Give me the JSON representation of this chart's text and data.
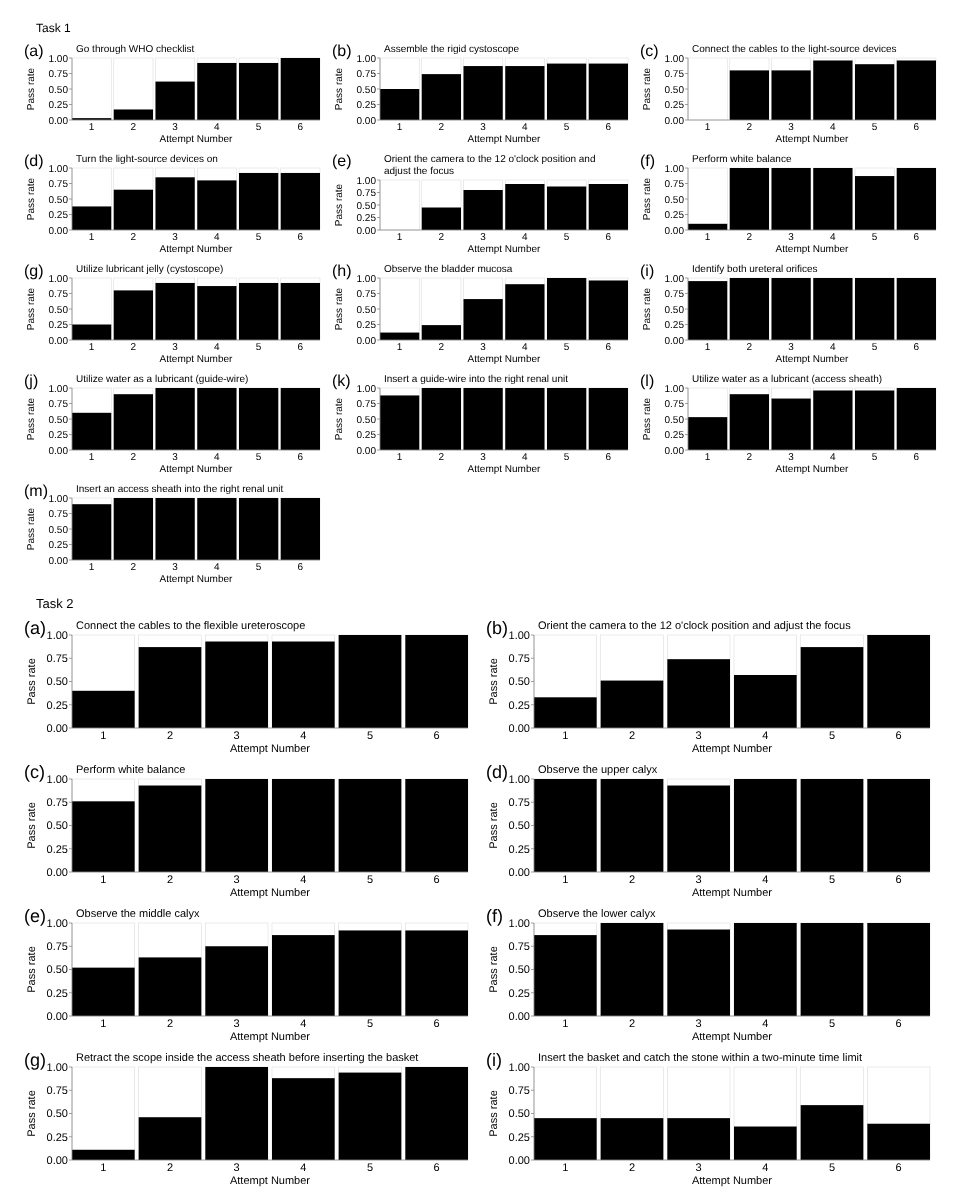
{
  "chart_data": [
    {
      "type": "bar",
      "title": "Go through WHO checklist",
      "xlabel": "Attempt Number",
      "ylabel": "Pass rate",
      "categories": [
        "1",
        "2",
        "3",
        "4",
        "5",
        "6"
      ],
      "values": [
        0.03,
        0.17,
        0.62,
        0.92,
        0.92,
        1.0
      ],
      "color": "#000000",
      "ylim": [
        0,
        1
      ],
      "yticks": [
        {
          "value": 0,
          "label": "0.00"
        },
        {
          "value": 0.25,
          "label": "0.25"
        },
        {
          "value": 0.5,
          "label": "0.50"
        },
        {
          "value": 0.75,
          "label": "0.75"
        },
        {
          "value": 1,
          "label": "1.00"
        }
      ],
      "annotations": [
        "Task 1",
        "(a)"
      ]
    },
    {
      "type": "bar",
      "title": "Assemble the rigid cystoscope",
      "xlabel": "Attempt Number",
      "ylabel": "Pass rate",
      "categories": [
        "1",
        "2",
        "3",
        "4",
        "5",
        "6"
      ],
      "values": [
        0.5,
        0.74,
        0.87,
        0.87,
        0.91,
        0.91
      ],
      "color": "#000000",
      "ylim": [
        0,
        1
      ],
      "yticks": [
        {
          "value": 0,
          "label": "0.00"
        },
        {
          "value": 0.25,
          "label": "0.25"
        },
        {
          "value": 0.5,
          "label": "0.50"
        },
        {
          "value": 0.75,
          "label": "0.75"
        },
        {
          "value": 1,
          "label": "1.00"
        }
      ],
      "annotations": [
        "(b)"
      ]
    },
    {
      "type": "bar",
      "title": "Connect the cables to the light-source devices",
      "xlabel": "Attempt Number",
      "ylabel": "Pass rate",
      "categories": [
        "1",
        "2",
        "3",
        "4",
        "5",
        "6"
      ],
      "values": [
        0,
        0.8,
        0.8,
        0.96,
        0.9,
        0.96
      ],
      "color": "#000000",
      "ylim": [
        0,
        1
      ],
      "yticks": [
        {
          "value": 0,
          "label": "0.00"
        },
        {
          "value": 0.25,
          "label": "0.25"
        },
        {
          "value": 0.5,
          "label": "0.50"
        },
        {
          "value": 0.75,
          "label": "0.75"
        },
        {
          "value": 1,
          "label": "1.00"
        }
      ],
      "annotations": [
        "(c)"
      ]
    },
    {
      "type": "bar",
      "title": "Turn the light-source devices on",
      "xlabel": "Attempt Number",
      "ylabel": "Pass rate",
      "categories": [
        "1",
        "2",
        "3",
        "4",
        "5",
        "6"
      ],
      "values": [
        0.38,
        0.65,
        0.85,
        0.8,
        0.92,
        0.92
      ],
      "color": "#000000",
      "ylim": [
        0,
        1
      ],
      "yticks": [
        {
          "value": 0,
          "label": "0.00"
        },
        {
          "value": 0.25,
          "label": "0.25"
        },
        {
          "value": 0.5,
          "label": "0.50"
        },
        {
          "value": 0.75,
          "label": "0.75"
        },
        {
          "value": 1,
          "label": "1.00"
        }
      ],
      "annotations": [
        "(d)"
      ]
    },
    {
      "type": "bar",
      "title": "Orient the camera to the 12 o'clock position and adjust the focus",
      "xlabel": "Attempt Number",
      "ylabel": "Pass rate",
      "categories": [
        "1",
        "2",
        "3",
        "4",
        "5",
        "6"
      ],
      "values": [
        0,
        0.45,
        0.8,
        0.92,
        0.87,
        0.92
      ],
      "color": "#000000",
      "ylim": [
        0,
        1
      ],
      "yticks": [
        {
          "value": 0,
          "label": "0.00"
        },
        {
          "value": 0.25,
          "label": "0.25"
        },
        {
          "value": 0.5,
          "label": "0.50"
        },
        {
          "value": 0.75,
          "label": "0.75"
        },
        {
          "value": 1,
          "label": "1.00"
        }
      ],
      "annotations": [
        "(e)"
      ]
    },
    {
      "type": "bar",
      "title": "Perform white balance",
      "xlabel": "Attempt Number",
      "ylabel": "Pass rate",
      "categories": [
        "1",
        "2",
        "3",
        "4",
        "5",
        "6"
      ],
      "values": [
        0.1,
        1,
        1,
        1,
        0.87,
        1
      ],
      "color": "#000000",
      "ylim": [
        0,
        1
      ],
      "yticks": [
        {
          "value": 0,
          "label": "0.00"
        },
        {
          "value": 0.25,
          "label": "0.25"
        },
        {
          "value": 0.5,
          "label": "0.50"
        },
        {
          "value": 0.75,
          "label": "0.75"
        },
        {
          "value": 1,
          "label": "1.00"
        }
      ],
      "annotations": [
        "(f)"
      ]
    },
    {
      "type": "bar",
      "title": "Utilize lubricant jelly (cystoscope)",
      "xlabel": "Attempt Number",
      "ylabel": "Pass rate",
      "categories": [
        "1",
        "2",
        "3",
        "4",
        "5",
        "6"
      ],
      "values": [
        0.25,
        0.8,
        0.92,
        0.87,
        0.92,
        0.92
      ],
      "color": "#000000",
      "ylim": [
        0,
        1
      ],
      "yticks": [
        {
          "value": 0,
          "label": "0.00"
        },
        {
          "value": 0.25,
          "label": "0.25"
        },
        {
          "value": 0.5,
          "label": "0.50"
        },
        {
          "value": 0.75,
          "label": "0.75"
        },
        {
          "value": 1,
          "label": "1.00"
        }
      ],
      "annotations": [
        "(g)"
      ]
    },
    {
      "type": "bar",
      "title": "Observe the bladder mucosa",
      "xlabel": "Attempt Number",
      "ylabel": "Pass rate",
      "categories": [
        "1",
        "2",
        "3",
        "4",
        "5",
        "6"
      ],
      "values": [
        0.12,
        0.24,
        0.66,
        0.9,
        1.0,
        0.96
      ],
      "color": "#000000",
      "ylim": [
        0,
        1
      ],
      "yticks": [
        {
          "value": 0,
          "label": "0.00"
        },
        {
          "value": 0.25,
          "label": "0.25"
        },
        {
          "value": 0.5,
          "label": "0.50"
        },
        {
          "value": 0.75,
          "label": "0.75"
        },
        {
          "value": 1,
          "label": "1.00"
        }
      ],
      "annotations": [
        "(h)"
      ]
    },
    {
      "type": "bar",
      "title": "Identify both ureteral orifices",
      "xlabel": "Attempt Number",
      "ylabel": "Pass rate",
      "categories": [
        "1",
        "2",
        "3",
        "4",
        "5",
        "6"
      ],
      "values": [
        0.95,
        1,
        1,
        1,
        1,
        1
      ],
      "color": "#000000",
      "ylim": [
        0,
        1
      ],
      "yticks": [
        {
          "value": 0,
          "label": "0.00"
        },
        {
          "value": 0.25,
          "label": "0.25"
        },
        {
          "value": 0.5,
          "label": "0.50"
        },
        {
          "value": 0.75,
          "label": "0.75"
        },
        {
          "value": 1,
          "label": "1.00"
        }
      ],
      "annotations": [
        "(i)"
      ]
    },
    {
      "type": "bar",
      "title": "Utilize water as a lubricant (guide-wire)",
      "xlabel": "Attempt Number",
      "ylabel": "Pass rate",
      "categories": [
        "1",
        "2",
        "3",
        "4",
        "5",
        "6"
      ],
      "values": [
        0.6,
        0.9,
        1,
        1,
        1,
        1
      ],
      "color": "#000000",
      "ylim": [
        0,
        1
      ],
      "yticks": [
        {
          "value": 0,
          "label": "0.00"
        },
        {
          "value": 0.25,
          "label": "0.25"
        },
        {
          "value": 0.5,
          "label": "0.50"
        },
        {
          "value": 0.75,
          "label": "0.75"
        },
        {
          "value": 1,
          "label": "1.00"
        }
      ],
      "annotations": [
        "(j)"
      ]
    },
    {
      "type": "bar",
      "title": "Insert a guide-wire into the right renal unit",
      "xlabel": "Attempt Number",
      "ylabel": "Pass rate",
      "categories": [
        "1",
        "2",
        "3",
        "4",
        "5",
        "6"
      ],
      "values": [
        0.88,
        1,
        1,
        1,
        1,
        1
      ],
      "color": "#000000",
      "ylim": [
        0,
        1
      ],
      "yticks": [
        {
          "value": 0,
          "label": "0.00"
        },
        {
          "value": 0.25,
          "label": "0.25"
        },
        {
          "value": 0.5,
          "label": "0.50"
        },
        {
          "value": 0.75,
          "label": "0.75"
        },
        {
          "value": 1,
          "label": "1.00"
        }
      ],
      "annotations": [
        "(k)"
      ]
    },
    {
      "type": "bar",
      "title": "Utilize water as a lubricant (access sheath)",
      "xlabel": "Attempt Number",
      "ylabel": "Pass rate",
      "categories": [
        "1",
        "2",
        "3",
        "4",
        "5",
        "6"
      ],
      "values": [
        0.53,
        0.9,
        0.83,
        0.96,
        0.96,
        1
      ],
      "color": "#000000",
      "ylim": [
        0,
        1
      ],
      "yticks": [
        {
          "value": 0,
          "label": "0.00"
        },
        {
          "value": 0.25,
          "label": "0.25"
        },
        {
          "value": 0.5,
          "label": "0.50"
        },
        {
          "value": 0.75,
          "label": "0.75"
        },
        {
          "value": 1,
          "label": "1.00"
        }
      ],
      "annotations": [
        "(l)"
      ]
    },
    {
      "type": "bar",
      "title": "Insert an access sheath into the right renal unit",
      "xlabel": "Attempt Number",
      "ylabel": "Pass rate",
      "categories": [
        "1",
        "2",
        "3",
        "4",
        "5",
        "6"
      ],
      "values": [
        0.9,
        1,
        1,
        1,
        1,
        1
      ],
      "color": "#000000",
      "ylim": [
        0,
        1
      ],
      "yticks": [
        {
          "value": 0,
          "label": "0.00"
        },
        {
          "value": 0.25,
          "label": "0.25"
        },
        {
          "value": 0.5,
          "label": "0.50"
        },
        {
          "value": 0.75,
          "label": "0.75"
        },
        {
          "value": 1,
          "label": "1.00"
        }
      ],
      "annotations": [
        "(m)"
      ]
    },
    {
      "type": "bar",
      "title": "Connect the cables to the flexible ureteroscope",
      "xlabel": "Attempt Number",
      "ylabel": "Pass rate",
      "categories": [
        "1",
        "2",
        "3",
        "4",
        "5",
        "6"
      ],
      "values": [
        0.4,
        0.87,
        0.93,
        0.93,
        1,
        1
      ],
      "color": "#000000",
      "ylim": [
        0,
        1
      ],
      "yticks": [
        {
          "value": 0,
          "label": "0.00"
        },
        {
          "value": 0.25,
          "label": "0.25"
        },
        {
          "value": 0.5,
          "label": "0.50"
        },
        {
          "value": 0.75,
          "label": "0.75"
        },
        {
          "value": 1,
          "label": "1.00"
        }
      ],
      "annotations": [
        "Task 2",
        "(a)"
      ]
    },
    {
      "type": "bar",
      "title": "Orient the camera to the 12 o'clock position and adjust the focus",
      "xlabel": "Attempt Number",
      "ylabel": "Pass rate",
      "categories": [
        "1",
        "2",
        "3",
        "4",
        "5",
        "6"
      ],
      "values": [
        0.33,
        0.51,
        0.74,
        0.57,
        0.87,
        1
      ],
      "color": "#000000",
      "ylim": [
        0,
        1
      ],
      "yticks": [
        {
          "value": 0,
          "label": "0.00"
        },
        {
          "value": 0.25,
          "label": "0.25"
        },
        {
          "value": 0.5,
          "label": "0.50"
        },
        {
          "value": 0.75,
          "label": "0.75"
        },
        {
          "value": 1,
          "label": "1.00"
        }
      ],
      "annotations": [
        "(b)"
      ]
    },
    {
      "type": "bar",
      "title": "Perform white balance",
      "xlabel": "Attempt Number",
      "ylabel": "Pass rate",
      "categories": [
        "1",
        "2",
        "3",
        "4",
        "5",
        "6"
      ],
      "values": [
        0.76,
        0.93,
        1,
        1,
        1,
        1
      ],
      "color": "#000000",
      "ylim": [
        0,
        1
      ],
      "yticks": [
        {
          "value": 0,
          "label": "0.00"
        },
        {
          "value": 0.25,
          "label": "0.25"
        },
        {
          "value": 0.5,
          "label": "0.50"
        },
        {
          "value": 0.75,
          "label": "0.75"
        },
        {
          "value": 1,
          "label": "1.00"
        }
      ],
      "annotations": [
        "(c)"
      ]
    },
    {
      "type": "bar",
      "title": "Observe the upper calyx",
      "xlabel": "Attempt Number",
      "ylabel": "Pass rate",
      "categories": [
        "1",
        "2",
        "3",
        "4",
        "5",
        "6"
      ],
      "values": [
        1,
        1,
        0.93,
        1,
        1,
        1
      ],
      "color": "#000000",
      "ylim": [
        0,
        1
      ],
      "yticks": [
        {
          "value": 0,
          "label": "0.00"
        },
        {
          "value": 0.25,
          "label": "0.25"
        },
        {
          "value": 0.5,
          "label": "0.50"
        },
        {
          "value": 0.75,
          "label": "0.75"
        },
        {
          "value": 1,
          "label": "1.00"
        }
      ],
      "annotations": [
        "(d)"
      ]
    },
    {
      "type": "bar",
      "title": "Observe the middle calyx",
      "xlabel": "Attempt Number",
      "ylabel": "Pass rate",
      "categories": [
        "1",
        "2",
        "3",
        "4",
        "5",
        "6"
      ],
      "values": [
        0.52,
        0.63,
        0.75,
        0.87,
        0.92,
        0.92
      ],
      "color": "#000000",
      "ylim": [
        0,
        1
      ],
      "yticks": [
        {
          "value": 0,
          "label": "0.00"
        },
        {
          "value": 0.25,
          "label": "0.25"
        },
        {
          "value": 0.5,
          "label": "0.50"
        },
        {
          "value": 0.75,
          "label": "0.75"
        },
        {
          "value": 1,
          "label": "1.00"
        }
      ],
      "annotations": [
        "(e)"
      ]
    },
    {
      "type": "bar",
      "title": "Observe the lower calyx",
      "xlabel": "Attempt Number",
      "ylabel": "Pass rate",
      "categories": [
        "1",
        "2",
        "3",
        "4",
        "5",
        "6"
      ],
      "values": [
        0.87,
        1,
        0.93,
        1,
        1,
        1
      ],
      "color": "#000000",
      "ylim": [
        0,
        1
      ],
      "yticks": [
        {
          "value": 0,
          "label": "0.00"
        },
        {
          "value": 0.25,
          "label": "0.25"
        },
        {
          "value": 0.5,
          "label": "0.50"
        },
        {
          "value": 0.75,
          "label": "0.75"
        },
        {
          "value": 1,
          "label": "1.00"
        }
      ],
      "annotations": [
        "(f)"
      ]
    },
    {
      "type": "bar",
      "title": "Retract the scope inside the access sheath before inserting the basket",
      "xlabel": "Attempt Number",
      "ylabel": "Pass rate",
      "categories": [
        "1",
        "2",
        "3",
        "4",
        "5",
        "6"
      ],
      "values": [
        0.11,
        0.46,
        1,
        0.88,
        0.94,
        1
      ],
      "color": "#000000",
      "ylim": [
        0,
        1
      ],
      "yticks": [
        {
          "value": 0,
          "label": "0.00"
        },
        {
          "value": 0.25,
          "label": "0.25"
        },
        {
          "value": 0.5,
          "label": "0.50"
        },
        {
          "value": 0.75,
          "label": "0.75"
        },
        {
          "value": 1,
          "label": "1.00"
        }
      ],
      "annotations": [
        "(g)"
      ]
    },
    {
      "type": "bar",
      "title": "Insert the basket and catch the stone within a two-minute time limit",
      "xlabel": "Attempt Number",
      "ylabel": "Pass rate",
      "categories": [
        "1",
        "2",
        "3",
        "4",
        "5",
        "6"
      ],
      "values": [
        0.45,
        0.45,
        0.45,
        0.36,
        0.59,
        0.39
      ],
      "color": "#000000",
      "ylim": [
        0,
        1
      ],
      "yticks": [
        {
          "value": 0,
          "label": "0.00"
        },
        {
          "value": 0.25,
          "label": "0.25"
        },
        {
          "value": 0.5,
          "label": "0.50"
        },
        {
          "value": 0.75,
          "label": "0.75"
        },
        {
          "value": 1,
          "label": "1.00"
        }
      ],
      "annotations": [
        "(i)"
      ]
    }
  ]
}
